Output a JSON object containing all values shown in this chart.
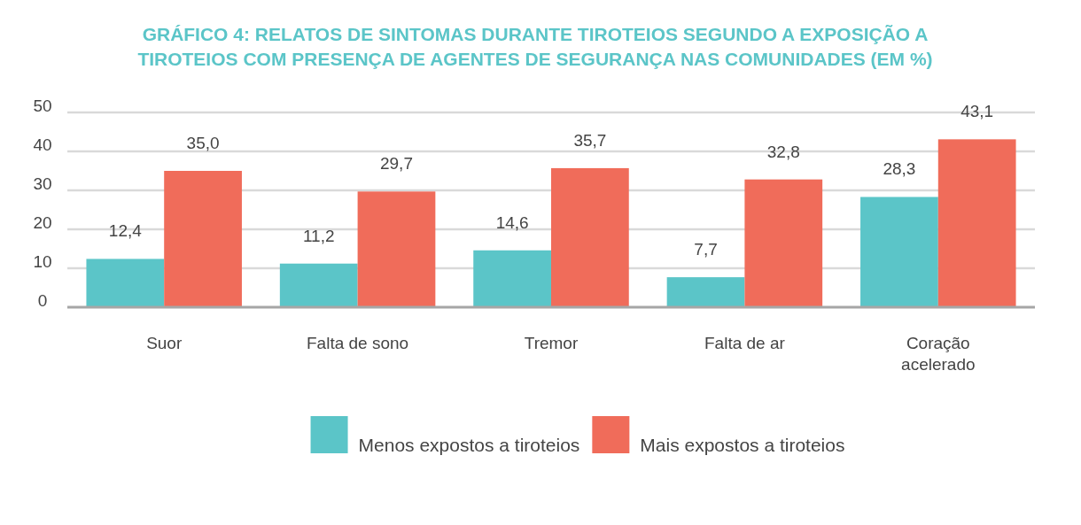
{
  "chart_data": {
    "type": "bar",
    "title": "GRÁFICO 4: RELATOS DE SINTOMAS DURANTE TIROTEIOS SEGUNDO A EXPOSIÇÃO A TIROTEIOS COM PRESENÇA DE AGENTES DE SEGURANÇA NAS COMUNIDADES (EM %)",
    "categories": [
      "Suor",
      "Falta de sono",
      "Tremor",
      "Falta de ar",
      "Coração acelerado"
    ],
    "series": [
      {
        "name": "Menos expostos a tiroteios",
        "color": "#5bc5c8",
        "values": [
          12.4,
          11.2,
          14.6,
          7.7,
          28.3
        ],
        "value_labels": [
          "12,4",
          "11,2",
          "14,6",
          "7,7",
          "28,3"
        ]
      },
      {
        "name": "Mais expostos a tiroteios",
        "color": "#f06c5a",
        "values": [
          35.0,
          29.7,
          35.7,
          32.8,
          43.1
        ],
        "value_labels": [
          "35,0",
          "29,7",
          "35,7",
          "32,8",
          "43,1"
        ]
      }
    ],
    "ylim": [
      0,
      50
    ],
    "yticks": [
      0,
      10,
      20,
      30,
      40,
      50
    ],
    "grid": "y",
    "legend": "bottom"
  }
}
